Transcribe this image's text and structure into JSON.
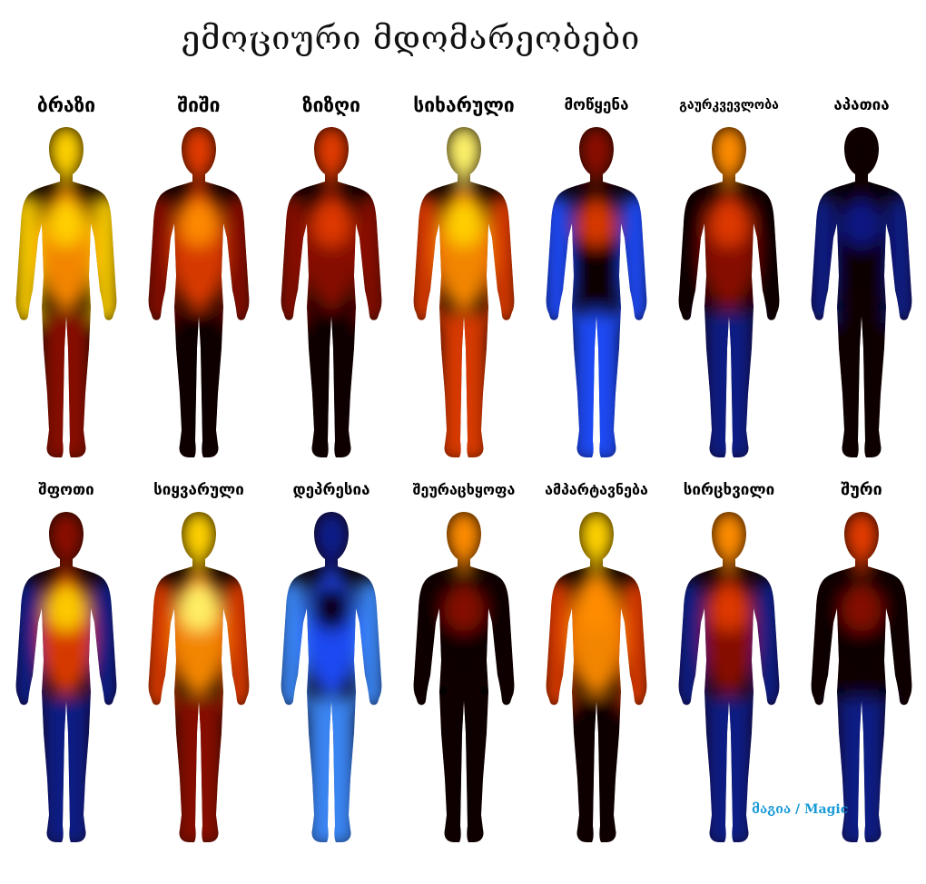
{
  "title": "ემოციური მდომარეობები",
  "watermark": "მაგია / Magic",
  "colors": {
    "black": "#0a0000",
    "hot": [
      "#2a0200",
      "#8b0f00",
      "#e23b00",
      "#ff8c00",
      "#ffd200",
      "#fff36a"
    ],
    "cold": [
      "#000018",
      "#0a1a8a",
      "#1f4dff",
      "#3d8bff",
      "#6fd0ff"
    ],
    "watermark": "#1a9bd7"
  },
  "emotions": [
    {
      "label": "ბრაზი",
      "size": 21,
      "head": "hot4",
      "torso": "hot3",
      "arms": "hot4",
      "legs": "hot1",
      "core": "hot4"
    },
    {
      "label": "შიში",
      "size": 21,
      "head": "hot2",
      "torso": "hot2",
      "arms": "hot1",
      "legs": "black",
      "core": "hot3"
    },
    {
      "label": "ზიზღი",
      "size": 21,
      "head": "hot2",
      "torso": "hot1",
      "arms": "hot1",
      "legs": "black",
      "core": "hot2"
    },
    {
      "label": "სიხარული",
      "size": 21,
      "head": "hot5",
      "torso": "hot3",
      "arms": "hot2",
      "legs": "hot2",
      "core": "hot4"
    },
    {
      "label": "მოწყენა",
      "size": 17,
      "head": "hot1",
      "torso": "black",
      "arms": "cold2",
      "legs": "cold2",
      "core": "hot2"
    },
    {
      "label": "გაურკვევლობა",
      "size": 14,
      "head": "hot3",
      "torso": "hot1",
      "arms": "black",
      "legs": "cold1",
      "core": "hot2"
    },
    {
      "label": "აპათია",
      "size": 17,
      "head": "black",
      "torso": "black",
      "arms": "cold1",
      "legs": "black",
      "core": "cold1"
    },
    {
      "label": "შფოთი",
      "size": 17,
      "head": "hot1",
      "torso": "hot2",
      "arms": "cold1",
      "legs": "cold1",
      "core": "hot4"
    },
    {
      "label": "სიყვარული",
      "size": 17,
      "head": "hot4",
      "torso": "hot3",
      "arms": "hot2",
      "legs": "hot1",
      "core": "hot5"
    },
    {
      "label": "დეპრესია",
      "size": 17,
      "head": "cold1",
      "torso": "cold2",
      "arms": "cold3",
      "legs": "cold3",
      "core": "black"
    },
    {
      "label": "შეურაცხყოფა",
      "size": 16,
      "head": "hot3",
      "torso": "black",
      "arms": "black",
      "legs": "black",
      "core": "hot1"
    },
    {
      "label": "ამპარტავნება",
      "size": 16,
      "head": "hot4",
      "torso": "hot3",
      "arms": "hot2",
      "legs": "black",
      "core": "hot3"
    },
    {
      "label": "სირცხვილი",
      "size": 17,
      "head": "hot3",
      "torso": "hot1",
      "arms": "cold1",
      "legs": "cold1",
      "core": "hot2"
    },
    {
      "label": "შური",
      "size": 18,
      "head": "hot2",
      "torso": "black",
      "arms": "black",
      "legs": "cold1",
      "core": "hot1"
    }
  ]
}
